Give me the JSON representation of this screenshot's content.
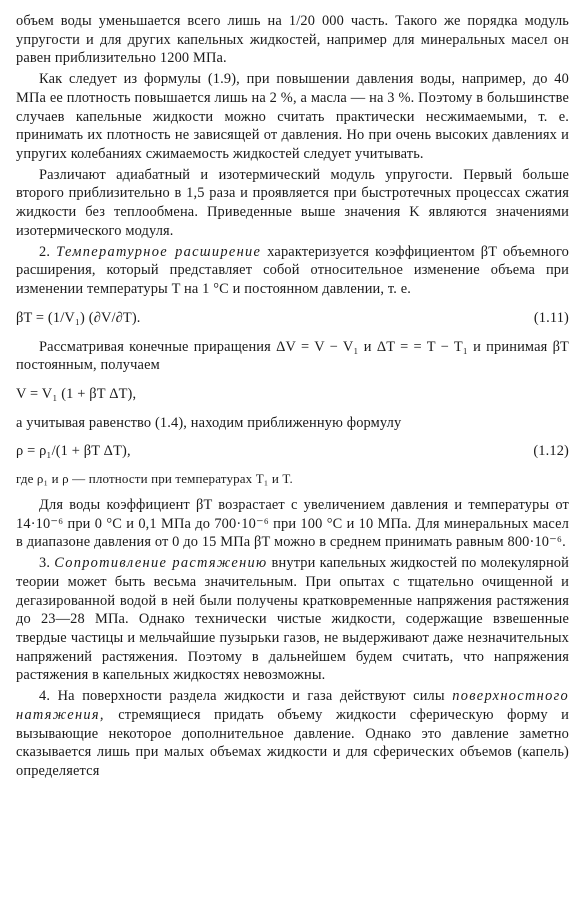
{
  "p1": "объем воды уменьшается всего лишь на 1/20 000 часть. Такого же порядка модуль упругости и для других капельных жидкостей, например для минеральных масел он равен приблизительно 1200 МПа.",
  "p2": "Как следует из формулы (1.9), при повышении давления воды, например, до 40 МПа ее плотность повышается лишь на 2 %, а масла — на 3 %. Поэтому в большинстве случаев капельные жидкости можно считать практически несжимаемыми, т. е. принимать их плотность не зависящей от давления. Но при очень высоких давлениях и упругих колебаниях сжимаемость жидкостей следует учитывать.",
  "p3": "Различают адиабатный и изотермический модуль упругости. Первый больше второго приблизительно в 1,5 раза и проявляется при быстротечных процессах сжатия жидкости без теплообмена. Приведенные выше значения K являются значениями изотермического модуля.",
  "p4a": "2. ",
  "p4i": "Температурное расширение",
  "p4b": " характеризуется коэффициентом βT объемного расширения, который представляет собой относительное изменение объема при изменении температуры T на 1 °C и постоянном давлении, т. е.",
  "eq111": "βT = (1/V₁) (∂V/∂T).",
  "eq111n": "(1.11)",
  "p5": "Рассматривая конечные приращения ΔV = V − V₁ и ΔT = = T − T₁ и принимая βT постоянным, получаем",
  "eqv": "V = V₁ (1 + βT ΔT),",
  "p6": "а учитывая равенство (1.4), находим приближенную формулу",
  "eq112": "ρ = ρ₁/(1 + βT ΔT),",
  "eq112n": "(1.12)",
  "p7": "где ρ₁ и ρ — плотности при температурах T₁ и T.",
  "p8": "Для воды коэффициент βT возрастает с увеличением давления и температуры от 14·10⁻⁶ при 0 °C и 0,1 МПа до 700·10⁻⁶ при 100 °C и 10 МПа. Для минеральных масел в диапазоне давления от 0 до 15 МПа βT можно в среднем принимать равным 800·10⁻⁶.",
  "p9a": "3. ",
  "p9i": "Сопротивление растяжению",
  "p9b": " внутри капельных жидкостей по молекулярной теории может быть весьма значительным. При опытах с тщательно очищенной и дегазированной водой в ней были получены кратковременные напряжения растяжения до 23—28 МПа. Однако технически чистые жидкости, содержащие взвешенные твердые частицы и мельчайшие пузырьки газов, не выдерживают даже незначительных напряжений растяжения. Поэтому в дальнейшем будем считать, что напряжения растяжения в капельных жидкостях невозможны.",
  "p10a": "4. На поверхности раздела жидкости и газа действуют силы ",
  "p10i": "поверхностного натяжения,",
  "p10b": " стремящиеся придать объему жидкости сферическую форму и вызывающие некоторое дополнительное давление. Однако это давление заметно сказывается лишь при малых объемах жидкости и для сферических объемов (капель) определяется"
}
